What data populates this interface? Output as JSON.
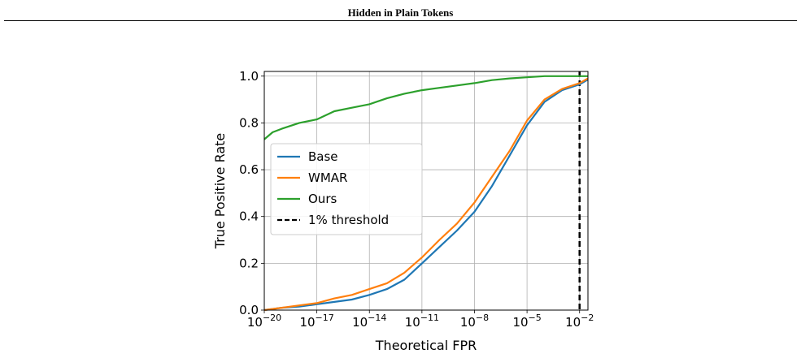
{
  "header": {
    "title": "Hidden in Plain Tokens"
  },
  "chart_data": {
    "type": "line",
    "xlabel": "Theoretical FPR",
    "ylabel": "True Positive Rate",
    "x_scale": "log",
    "xlim": [
      1e-20,
      0.03
    ],
    "ylim": [
      0.0,
      1.02
    ],
    "grid": true,
    "legend_position": "center-left",
    "x_ticks": [
      {
        "value": 1e-20,
        "base": "10",
        "exp": "−20"
      },
      {
        "value": 1e-17,
        "base": "10",
        "exp": "−17"
      },
      {
        "value": 1e-14,
        "base": "10",
        "exp": "−14"
      },
      {
        "value": 1e-11,
        "base": "10",
        "exp": "−11"
      },
      {
        "value": 1e-08,
        "base": "10",
        "exp": "−8"
      },
      {
        "value": 1e-05,
        "base": "10",
        "exp": "−5"
      },
      {
        "value": 0.01,
        "base": "10",
        "exp": "−2"
      }
    ],
    "y_ticks": [
      {
        "value": 0.0,
        "label": "0.0"
      },
      {
        "value": 0.2,
        "label": "0.2"
      },
      {
        "value": 0.4,
        "label": "0.4"
      },
      {
        "value": 0.6,
        "label": "0.6"
      },
      {
        "value": 0.8,
        "label": "0.8"
      },
      {
        "value": 1.0,
        "label": "1.0"
      }
    ],
    "series": [
      {
        "name": "Base",
        "color": "#1f77b4",
        "points": [
          [
            1e-20,
            0.0
          ],
          [
            1e-19,
            0.01
          ],
          [
            1e-18,
            0.015
          ],
          [
            1e-17,
            0.025
          ],
          [
            1e-16,
            0.035
          ],
          [
            1e-15,
            0.045
          ],
          [
            1e-14,
            0.065
          ],
          [
            1e-13,
            0.09
          ],
          [
            1e-12,
            0.13
          ],
          [
            1e-11,
            0.2
          ],
          [
            1e-10,
            0.27
          ],
          [
            1e-09,
            0.34
          ],
          [
            1e-08,
            0.42
          ],
          [
            1e-07,
            0.53
          ],
          [
            1e-06,
            0.66
          ],
          [
            1e-05,
            0.79
          ],
          [
            0.0001,
            0.89
          ],
          [
            0.001,
            0.94
          ],
          [
            0.01,
            0.965
          ],
          [
            0.03,
            0.985
          ]
        ]
      },
      {
        "name": "WMAR",
        "color": "#ff7f0e",
        "points": [
          [
            1e-20,
            0.0
          ],
          [
            1e-19,
            0.01
          ],
          [
            1e-18,
            0.02
          ],
          [
            1e-17,
            0.03
          ],
          [
            1e-16,
            0.05
          ],
          [
            1e-15,
            0.065
          ],
          [
            1e-14,
            0.09
          ],
          [
            1e-13,
            0.115
          ],
          [
            1e-12,
            0.16
          ],
          [
            1e-11,
            0.225
          ],
          [
            1e-10,
            0.3
          ],
          [
            1e-09,
            0.37
          ],
          [
            1e-08,
            0.46
          ],
          [
            1e-07,
            0.57
          ],
          [
            1e-06,
            0.68
          ],
          [
            1e-05,
            0.81
          ],
          [
            0.0001,
            0.9
          ],
          [
            0.001,
            0.945
          ],
          [
            0.01,
            0.97
          ],
          [
            0.03,
            0.99
          ]
        ]
      },
      {
        "name": "Ours",
        "color": "#2ca02c",
        "points": [
          [
            1e-20,
            0.73
          ],
          [
            3e-20,
            0.76
          ],
          [
            1e-19,
            0.775
          ],
          [
            1e-18,
            0.8
          ],
          [
            1e-17,
            0.815
          ],
          [
            1e-16,
            0.85
          ],
          [
            1e-15,
            0.865
          ],
          [
            1e-14,
            0.88
          ],
          [
            1e-13,
            0.905
          ],
          [
            1e-12,
            0.925
          ],
          [
            1e-11,
            0.94
          ],
          [
            1e-10,
            0.95
          ],
          [
            1e-09,
            0.96
          ],
          [
            1e-08,
            0.97
          ],
          [
            1e-07,
            0.983
          ],
          [
            1e-06,
            0.99
          ],
          [
            1e-05,
            0.995
          ],
          [
            0.0001,
            1.0
          ],
          [
            0.001,
            1.0
          ],
          [
            0.01,
            1.0
          ],
          [
            0.03,
            1.0
          ]
        ]
      }
    ],
    "threshold": {
      "name": "1% threshold",
      "x": 0.01,
      "color": "#000000",
      "style": "dashed"
    }
  }
}
